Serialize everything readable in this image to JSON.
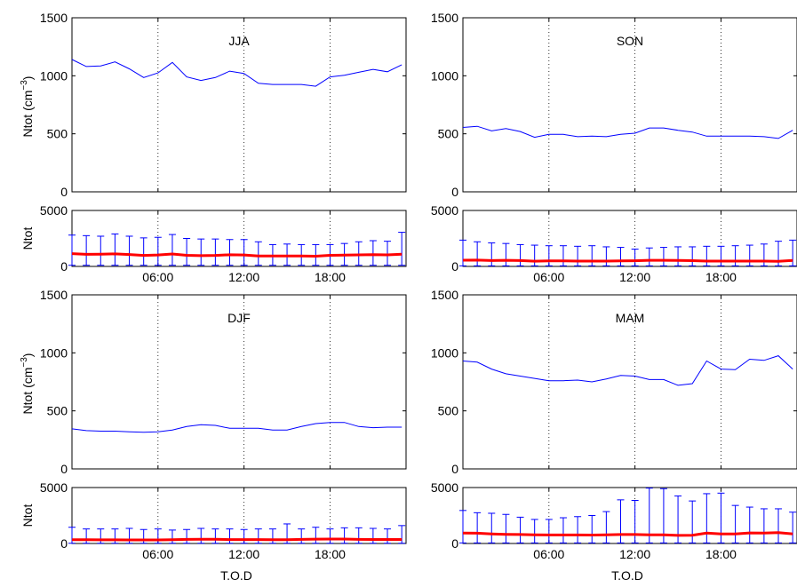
{
  "colors": {
    "line": "#0000ff",
    "mean": "#ff0000",
    "err": "#0000ff",
    "axis": "#000000",
    "grid": "#000000"
  },
  "x_ticks": [
    "06:00",
    "12:00",
    "18:00"
  ],
  "xlabel": "T.O.D",
  "ylabel_top": "Ntot (cm",
  "ylabel_top_exp": "−3",
  "ylabel_top_close": ")",
  "ylabel_bottom": "Ntot",
  "chart_data": [
    {
      "type": "line",
      "season": "JJA",
      "ylim": [
        0,
        1500
      ],
      "yticks": [
        0,
        500,
        1000,
        1500
      ],
      "grid": "vertical dotted",
      "x": [
        0,
        1,
        2,
        3,
        4,
        5,
        6,
        7,
        8,
        9,
        10,
        11,
        12,
        13,
        14,
        15,
        16,
        17,
        18,
        19,
        20,
        21,
        22,
        23
      ],
      "values": [
        1140,
        1080,
        1085,
        1120,
        1060,
        985,
        1025,
        1115,
        990,
        960,
        985,
        1040,
        1020,
        935,
        925,
        925,
        925,
        910,
        990,
        1005,
        1030,
        1055,
        1035,
        1095
      ]
    },
    {
      "type": "line",
      "season": "SON",
      "ylim": [
        0,
        1500
      ],
      "yticks": [
        0,
        500,
        1000,
        1500
      ],
      "grid": "vertical dotted",
      "x": [
        0,
        1,
        2,
        3,
        4,
        5,
        6,
        7,
        8,
        9,
        10,
        11,
        12,
        13,
        14,
        15,
        16,
        17,
        18,
        19,
        20,
        21,
        22,
        23
      ],
      "values": [
        555,
        565,
        525,
        545,
        520,
        470,
        495,
        495,
        475,
        480,
        475,
        495,
        505,
        550,
        550,
        530,
        515,
        480,
        480,
        480,
        480,
        475,
        460,
        530
      ]
    },
    {
      "type": "line",
      "season": "DJF",
      "ylim": [
        0,
        1500
      ],
      "yticks": [
        0,
        500,
        1000,
        1500
      ],
      "grid": "vertical dotted",
      "x": [
        0,
        1,
        2,
        3,
        4,
        5,
        6,
        7,
        8,
        9,
        10,
        11,
        12,
        13,
        14,
        15,
        16,
        17,
        18,
        19,
        20,
        21,
        22,
        23
      ],
      "values": [
        345,
        330,
        325,
        325,
        320,
        315,
        320,
        335,
        365,
        380,
        375,
        350,
        350,
        350,
        335,
        335,
        365,
        390,
        400,
        400,
        365,
        355,
        360,
        360
      ]
    },
    {
      "type": "line",
      "season": "MAM",
      "ylim": [
        0,
        1500
      ],
      "yticks": [
        0,
        500,
        1000,
        1500
      ],
      "grid": "vertical dotted",
      "x": [
        0,
        1,
        2,
        3,
        4,
        5,
        6,
        7,
        8,
        9,
        10,
        11,
        12,
        13,
        14,
        15,
        16,
        17,
        18,
        19,
        20,
        21,
        22,
        23
      ],
      "values": [
        930,
        920,
        860,
        820,
        800,
        780,
        760,
        760,
        765,
        750,
        775,
        805,
        800,
        770,
        770,
        720,
        735,
        930,
        860,
        855,
        945,
        935,
        975,
        860
      ]
    },
    {
      "type": "line",
      "season": "JJA",
      "ylim": [
        0,
        5000
      ],
      "yticks": [
        0,
        5000
      ],
      "grid": "vertical dotted",
      "x": [
        0,
        1,
        2,
        3,
        4,
        5,
        6,
        7,
        8,
        9,
        10,
        11,
        12,
        13,
        14,
        15,
        16,
        17,
        18,
        19,
        20,
        21,
        22,
        23
      ],
      "mean": [
        1140,
        1080,
        1085,
        1120,
        1060,
        985,
        1025,
        1115,
        990,
        960,
        985,
        1040,
        1020,
        935,
        925,
        925,
        925,
        910,
        990,
        1005,
        1030,
        1055,
        1035,
        1095
      ],
      "err_upper": [
        2800,
        2750,
        2700,
        2900,
        2700,
        2550,
        2600,
        2850,
        2500,
        2450,
        2450,
        2400,
        2400,
        2200,
        1950,
        2000,
        1950,
        1950,
        1950,
        2050,
        2200,
        2300,
        2250,
        3050
      ],
      "err_lower": [
        100,
        100,
        100,
        100,
        100,
        100,
        100,
        100,
        100,
        100,
        100,
        100,
        100,
        100,
        100,
        100,
        100,
        100,
        100,
        100,
        100,
        100,
        100,
        100
      ]
    },
    {
      "type": "line",
      "season": "SON",
      "ylim": [
        0,
        5000
      ],
      "yticks": [
        0,
        5000
      ],
      "grid": "vertical dotted",
      "x": [
        0,
        1,
        2,
        3,
        4,
        5,
        6,
        7,
        8,
        9,
        10,
        11,
        12,
        13,
        14,
        15,
        16,
        17,
        18,
        19,
        20,
        21,
        22,
        23
      ],
      "mean": [
        555,
        565,
        525,
        545,
        520,
        470,
        495,
        495,
        475,
        480,
        475,
        495,
        505,
        550,
        550,
        530,
        515,
        480,
        480,
        480,
        480,
        475,
        460,
        530
      ],
      "err_upper": [
        2350,
        2200,
        2100,
        2050,
        1950,
        1900,
        1850,
        1850,
        1800,
        1850,
        1750,
        1700,
        1550,
        1650,
        1700,
        1750,
        1750,
        1800,
        1800,
        1850,
        1900,
        2000,
        2250,
        2350
      ],
      "err_lower": [
        50,
        50,
        50,
        50,
        50,
        50,
        50,
        50,
        50,
        50,
        50,
        50,
        50,
        50,
        50,
        50,
        50,
        50,
        50,
        50,
        50,
        50,
        50,
        50
      ]
    },
    {
      "type": "line",
      "season": "DJF",
      "ylim": [
        0,
        5000
      ],
      "yticks": [
        0,
        5000
      ],
      "grid": "vertical dotted",
      "x": [
        0,
        1,
        2,
        3,
        4,
        5,
        6,
        7,
        8,
        9,
        10,
        11,
        12,
        13,
        14,
        15,
        16,
        17,
        18,
        19,
        20,
        21,
        22,
        23
      ],
      "mean": [
        345,
        330,
        325,
        325,
        320,
        315,
        320,
        335,
        365,
        380,
        375,
        350,
        350,
        350,
        335,
        335,
        365,
        390,
        400,
        400,
        365,
        355,
        360,
        360
      ],
      "err_upper": [
        1450,
        1300,
        1300,
        1300,
        1350,
        1250,
        1300,
        1200,
        1250,
        1350,
        1300,
        1300,
        1250,
        1300,
        1300,
        1750,
        1300,
        1450,
        1300,
        1400,
        1400,
        1350,
        1300,
        1600
      ],
      "err_lower": [
        20,
        20,
        20,
        20,
        20,
        20,
        20,
        20,
        20,
        20,
        20,
        20,
        20,
        20,
        20,
        20,
        20,
        20,
        20,
        20,
        20,
        20,
        20,
        20
      ]
    },
    {
      "type": "line",
      "season": "MAM",
      "ylim": [
        0,
        5000
      ],
      "yticks": [
        0,
        5000
      ],
      "grid": "vertical dotted",
      "x": [
        0,
        1,
        2,
        3,
        4,
        5,
        6,
        7,
        8,
        9,
        10,
        11,
        12,
        13,
        14,
        15,
        16,
        17,
        18,
        19,
        20,
        21,
        22,
        23
      ],
      "mean": [
        930,
        920,
        860,
        820,
        800,
        780,
        760,
        760,
        765,
        750,
        775,
        805,
        800,
        770,
        770,
        720,
        735,
        930,
        860,
        855,
        945,
        935,
        975,
        860
      ],
      "err_upper": [
        2950,
        2750,
        2700,
        2600,
        2350,
        2150,
        2150,
        2300,
        2400,
        2500,
        2850,
        3900,
        3850,
        4950,
        4900,
        4250,
        3800,
        4450,
        4500,
        3400,
        3250,
        3100,
        3100,
        2800
      ],
      "err_lower": [
        50,
        50,
        50,
        50,
        50,
        50,
        50,
        50,
        50,
        50,
        50,
        50,
        50,
        50,
        50,
        50,
        50,
        50,
        50,
        50,
        50,
        50,
        50,
        50
      ]
    }
  ]
}
